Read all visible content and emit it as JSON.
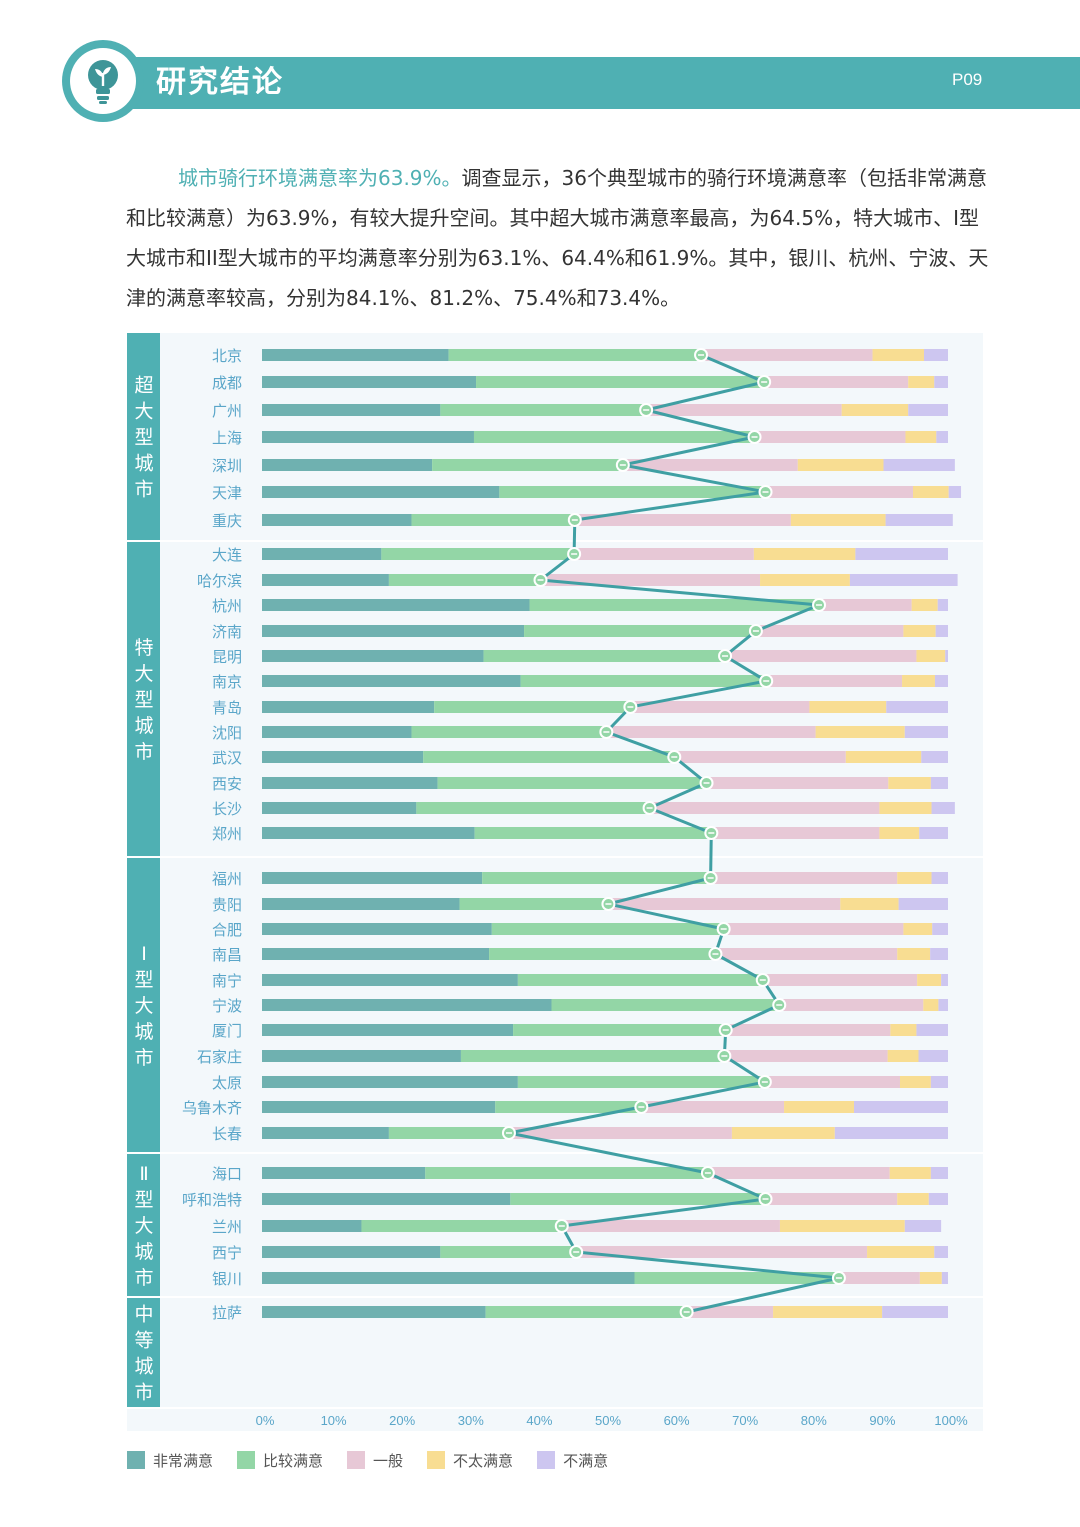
{
  "header": {
    "title": "研究结论",
    "page_number": "P09",
    "icon": "lightbulb-icon"
  },
  "intro": {
    "highlight": "城市骑行环境满意率为63.9%。",
    "body": "调查显示，36个典型城市的骑行环境满意率（包括非常满意和比较满意）为63.9%，有较大提升空间。其中超大城市满意率最高，为64.5%，特大城市、I型大城市和II型大城市的平均满意率分别为63.1%、64.4%和61.9%。其中，银川、杭州、宁波、天津的满意率较高，分别为84.1%、81.2%、75.4%和73.4%。"
  },
  "colors": {
    "very_satisfied": "#6fb1b0",
    "satisfied": "#93d6a6",
    "neutral": "#e7c8d6",
    "unsatisfied": "#f8dd92",
    "very_unsatisfied": "#cdc6f0",
    "line": "#3f9fa3",
    "group_band": "#4fb0b3",
    "panel_bg": "#f3f8fb"
  },
  "chart_data": {
    "type": "bar",
    "orientation": "horizontal-stacked-100",
    "xlim": [
      0,
      100
    ],
    "x_ticks": [
      "0%",
      "10%",
      "20%",
      "30%",
      "40%",
      "50%",
      "60%",
      "70%",
      "80%",
      "90%",
      "100%"
    ],
    "series_names": [
      "非常满意",
      "比较满意",
      "一般",
      "不太满意",
      "不满意"
    ],
    "line_series": "满意率（非常满意+比较满意）",
    "groups": [
      {
        "name": "超大型城市",
        "cities": [
          {
            "name": "北京",
            "values": [
              27.2,
              36.8,
              25.0,
              7.5,
              3.5
            ]
          },
          {
            "name": "成都",
            "values": [
              31.2,
              42.0,
              21.0,
              3.8,
              2.0
            ]
          },
          {
            "name": "广州",
            "values": [
              26.0,
              30.0,
              28.5,
              9.7,
              5.8
            ]
          },
          {
            "name": "上海",
            "values": [
              30.9,
              40.9,
              22.0,
              4.5,
              1.7
            ]
          },
          {
            "name": "深圳",
            "values": [
              24.8,
              27.8,
              25.5,
              12.5,
              10.4
            ]
          },
          {
            "name": "天津",
            "values": [
              34.6,
              38.8,
              21.5,
              5.2,
              1.8
            ]
          },
          {
            "name": "重庆",
            "values": [
              21.8,
              23.8,
              31.5,
              13.8,
              9.8
            ]
          }
        ]
      },
      {
        "name": "特大型城市",
        "cities": [
          {
            "name": "大连",
            "values": [
              17.4,
              28.1,
              26.2,
              14.8,
              13.5
            ]
          },
          {
            "name": "哈尔滨",
            "values": [
              18.5,
              22.1,
              32.0,
              13.1,
              15.7
            ]
          },
          {
            "name": "杭州",
            "values": [
              39.0,
              42.2,
              13.5,
              3.8,
              1.5
            ]
          },
          {
            "name": "济南",
            "values": [
              38.2,
              33.8,
              21.5,
              4.7,
              1.8
            ]
          },
          {
            "name": "昆明",
            "values": [
              32.3,
              35.2,
              27.9,
              4.2,
              0.4
            ]
          },
          {
            "name": "南京",
            "values": [
              37.7,
              35.8,
              19.8,
              4.8,
              1.9
            ]
          },
          {
            "name": "青岛",
            "values": [
              25.1,
              28.6,
              26.1,
              11.2,
              9.0
            ]
          },
          {
            "name": "沈阳",
            "values": [
              21.8,
              28.4,
              30.5,
              13.0,
              6.3
            ]
          },
          {
            "name": "武汉",
            "values": [
              23.5,
              36.6,
              25.0,
              11.0,
              3.9
            ]
          },
          {
            "name": "西安",
            "values": [
              25.6,
              39.2,
              26.5,
              6.2,
              2.5
            ]
          },
          {
            "name": "长沙",
            "values": [
              22.5,
              34.0,
              33.5,
              7.6,
              3.4
            ]
          },
          {
            "name": "郑州",
            "values": [
              31.0,
              34.5,
              24.5,
              5.8,
              4.2
            ]
          }
        ]
      },
      {
        "name": "Ⅰ型大城市",
        "cities": [
          {
            "name": "福州",
            "values": [
              32.1,
              33.3,
              27.2,
              5.0,
              2.4
            ]
          },
          {
            "name": "贵阳",
            "values": [
              28.8,
              21.7,
              33.8,
              8.5,
              7.2
            ]
          },
          {
            "name": "合肥",
            "values": [
              33.5,
              33.8,
              26.2,
              4.2,
              2.3
            ]
          },
          {
            "name": "南昌",
            "values": [
              33.1,
              33.0,
              26.5,
              4.8,
              2.6
            ]
          },
          {
            "name": "南宁",
            "values": [
              37.3,
              35.7,
              22.5,
              3.5,
              1.0
            ]
          },
          {
            "name": "宁波",
            "values": [
              42.2,
              33.2,
              21.0,
              2.2,
              1.4
            ]
          },
          {
            "name": "厦门",
            "values": [
              36.6,
              31.0,
              24.0,
              3.8,
              4.6
            ]
          },
          {
            "name": "石家庄",
            "values": [
              29.0,
              38.4,
              23.8,
              4.5,
              4.3
            ]
          },
          {
            "name": "太原",
            "values": [
              37.3,
              36.0,
              19.7,
              4.5,
              2.5
            ]
          },
          {
            "name": "乌鲁木齐",
            "values": [
              34.0,
              21.3,
              20.8,
              10.2,
              13.7
            ]
          },
          {
            "name": "长春",
            "values": [
              18.5,
              17.5,
              32.5,
              15.0,
              16.5
            ]
          }
        ]
      },
      {
        "name": "Ⅱ型大城市",
        "cities": [
          {
            "name": "海口",
            "values": [
              23.8,
              41.2,
              26.5,
              6.0,
              2.5
            ]
          },
          {
            "name": "呼和浩特",
            "values": [
              36.2,
              37.2,
              19.2,
              4.6,
              2.8
            ]
          },
          {
            "name": "兰州",
            "values": [
              14.5,
              29.2,
              31.8,
              18.2,
              5.3
            ]
          },
          {
            "name": "西宁",
            "values": [
              26.0,
              19.8,
              42.4,
              9.8,
              2.0
            ]
          },
          {
            "name": "银川",
            "values": [
              54.3,
              29.8,
              11.8,
              3.2,
              0.9
            ]
          }
        ]
      },
      {
        "name": "中等城市",
        "cities": [
          {
            "name": "拉萨",
            "values": [
              32.6,
              29.3,
              12.6,
              15.9,
              9.6
            ]
          }
        ]
      }
    ]
  }
}
